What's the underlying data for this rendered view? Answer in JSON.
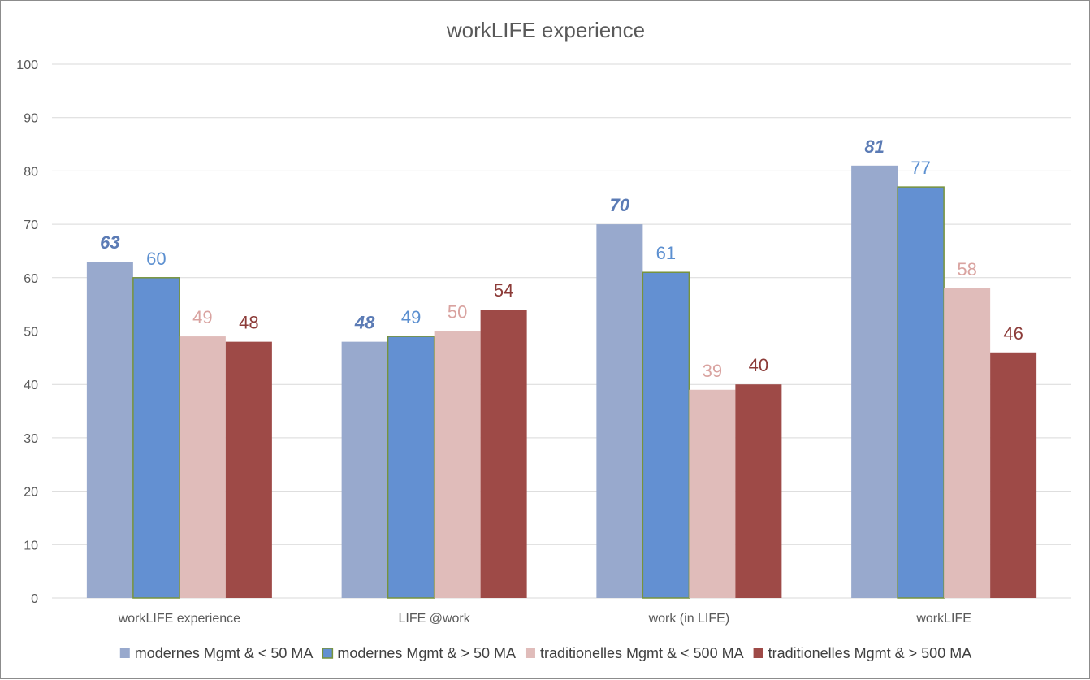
{
  "chart_data": {
    "type": "bar",
    "title": "workLIFE experience",
    "xlabel": "",
    "ylabel": "",
    "ylim": [
      0,
      100
    ],
    "yticks": [
      0,
      10,
      20,
      30,
      40,
      50,
      60,
      70,
      80,
      90,
      100
    ],
    "grid": true,
    "legend_position": "bottom",
    "categories": [
      "workLIFE experience",
      "LIFE @work",
      "work (in LIFE)",
      "workLIFE"
    ],
    "series": [
      {
        "name": "modernes Mgmt & < 50 MA",
        "values": [
          63,
          48,
          70,
          81
        ],
        "color": "#98a9cd",
        "label_color": "#5b7bb5",
        "border": "none",
        "italic_labels": true
      },
      {
        "name": "modernes Mgmt & > 50 MA",
        "values": [
          60,
          49,
          61,
          77
        ],
        "color": "#6390d2",
        "label_color": "#5b8fd0",
        "border": "#77933c",
        "italic_labels": false
      },
      {
        "name": "traditionelles Mgmt & < 500 MA",
        "values": [
          49,
          50,
          39,
          58
        ],
        "color": "#e0bcba",
        "label_color": "#d9a3a0",
        "border": "none",
        "italic_labels": false
      },
      {
        "name": "traditionelles Mgmt & > 500 MA",
        "values": [
          48,
          54,
          40,
          46
        ],
        "color": "#9e4a47",
        "label_color": "#8c3b38",
        "border": "none",
        "italic_labels": false
      }
    ]
  }
}
